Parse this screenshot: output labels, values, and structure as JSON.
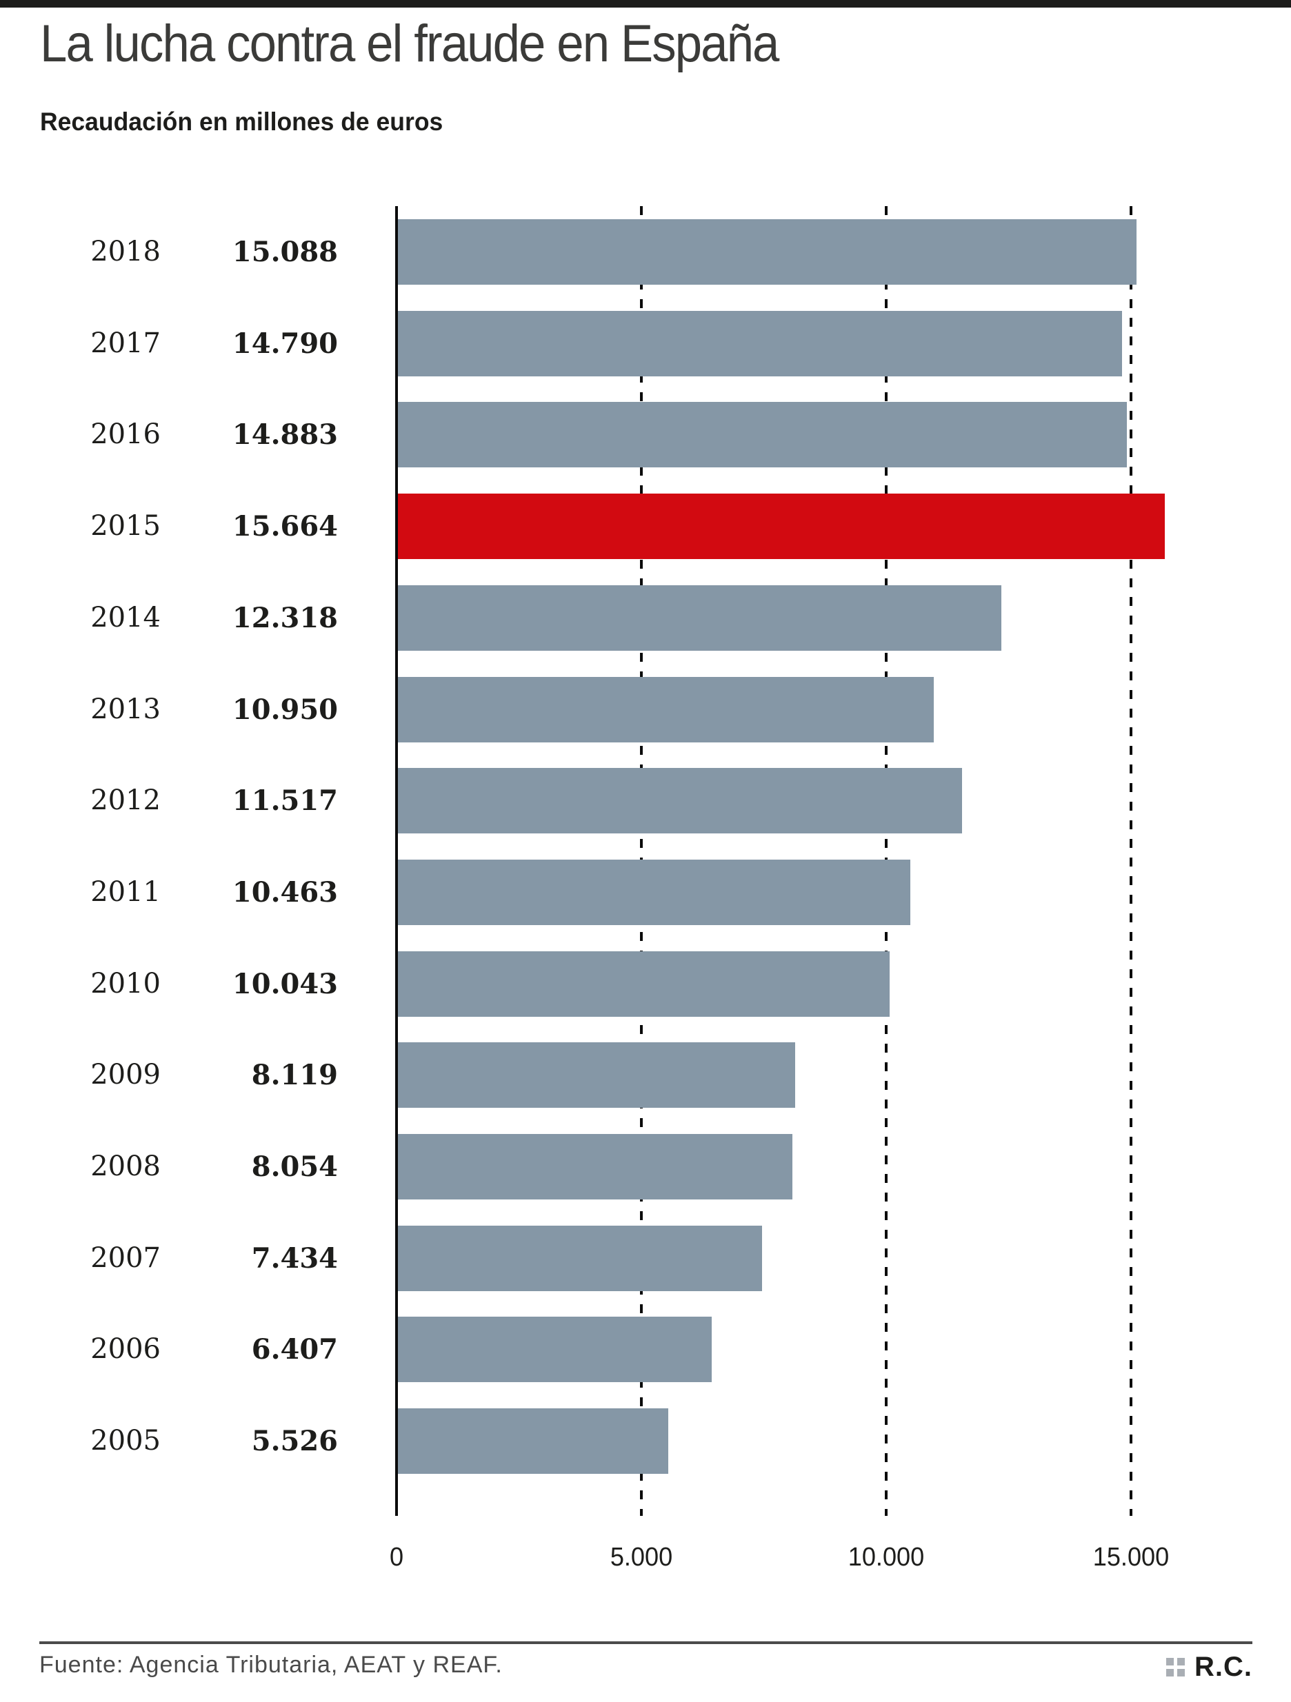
{
  "page": {
    "title": "La lucha contra el fraude en España",
    "subtitle": "Recaudación en millones de euros",
    "footer": {
      "source": "Fuente: Agencia Tributaria, AEAT y REAF.",
      "credit": "R.C.",
      "credit_icon": "four-squares-icon"
    }
  },
  "chart_data": {
    "type": "bar",
    "orientation": "horizontal",
    "title": "La lucha contra el fraude en España",
    "subtitle": "Recaudación en millones de euros",
    "categories": [
      "2018",
      "2017",
      "2016",
      "2015",
      "2014",
      "2013",
      "2012",
      "2011",
      "2010",
      "2009",
      "2008",
      "2007",
      "2006",
      "2005"
    ],
    "values": [
      15088,
      14790,
      14883,
      15664,
      12318,
      10950,
      11517,
      10463,
      10043,
      8119,
      8054,
      7434,
      6407,
      5526
    ],
    "value_labels": [
      "15.088",
      "14.790",
      "14.883",
      "15.664",
      "12.318",
      "10.950",
      "11.517",
      "10.463",
      "10.043",
      "8.119",
      "8.054",
      "7.434",
      "6.407",
      "5.526"
    ],
    "highlight_category": "2015",
    "x_ticks": [
      {
        "value": 0,
        "label": "0"
      },
      {
        "value": 5000,
        "label": "5.000"
      },
      {
        "value": 10000,
        "label": "10.000"
      },
      {
        "value": 15000,
        "label": "15.000"
      }
    ],
    "xlim": [
      0,
      17500
    ],
    "grid": "dashed-vertical",
    "legend": "none",
    "colors": {
      "bar": "#8597a6",
      "highlight": "#d20a11",
      "axis": "#0b0b0b",
      "text": "#1d1d1b"
    }
  }
}
